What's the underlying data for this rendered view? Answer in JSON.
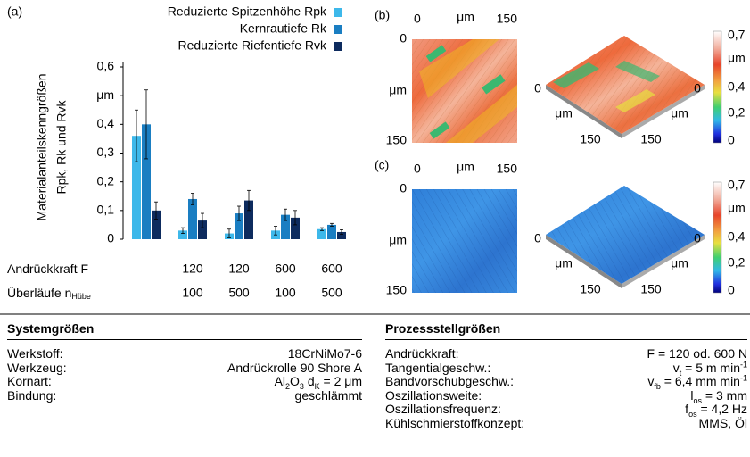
{
  "chart_data": {
    "type": "bar",
    "panel_label": "(a)",
    "y_label": [
      "Materialanteilskenngrößen",
      "Rpk, Rk und Rvk"
    ],
    "categories": [
      null,
      null,
      null,
      null,
      null
    ],
    "x_rows": [
      {
        "label": "Andrückkraft F",
        "values": [
          null,
          "120",
          "120",
          "600",
          "600"
        ]
      },
      {
        "label": "Überläufe n",
        "label_sub": "Hübe",
        "values": [
          null,
          "100",
          "500",
          "100",
          "500"
        ]
      }
    ],
    "series": [
      {
        "name": "Reduzierte Spitzenhöhe Rpk",
        "color": "#3db8ea",
        "values": [
          0.36,
          0.03,
          0.02,
          0.03,
          0.035
        ],
        "errors": [
          0.09,
          0.01,
          0.015,
          0.015,
          0.005
        ]
      },
      {
        "name": "Kernrautiefe Rk",
        "color": "#1a7ec2",
        "values": [
          0.4,
          0.14,
          0.09,
          0.085,
          0.05
        ],
        "errors": [
          0.12,
          0.02,
          0.025,
          0.02,
          0.005
        ]
      },
      {
        "name": "Reduzierte Riefentiefe Rvk",
        "color": "#0d2b5e",
        "values": [
          0.1,
          0.065,
          0.135,
          0.075,
          0.025
        ],
        "errors": [
          0.03,
          0.025,
          0.035,
          0.025,
          0.008
        ]
      }
    ],
    "ylim": [
      0,
      0.6
    ],
    "yticks": [
      0,
      {
        "value": 0.1,
        "label": "0,1"
      },
      {
        "value": 0.2,
        "label": "0,2"
      },
      {
        "value": 0.3,
        "label": "0,3"
      },
      {
        "value": 0.4,
        "label": "0,4"
      },
      {
        "value": 0.5,
        "label": "μm"
      },
      {
        "value": 0.6,
        "label": "0,6"
      }
    ],
    "grid": false
  },
  "maps": {
    "panels": [
      "(b)",
      "(c)"
    ],
    "axis_ticks": [
      "0",
      "μm",
      "150"
    ],
    "colorbar_ticks": [
      "0,7",
      "μm",
      "0,4",
      "0,2",
      "0"
    ]
  },
  "tables": [
    {
      "title": "Systemgrößen",
      "rows": [
        {
          "label": "Werkstoff:",
          "value": [
            {
              "text": "18CrNiMo7-6"
            }
          ]
        },
        {
          "label": "Werkzeug:",
          "value": [
            {
              "text": "Andrückrolle 90 Shore A"
            }
          ]
        },
        {
          "label": "Kornart:",
          "value": [
            {
              "text": "Al"
            },
            {
              "text": "2",
              "style": "sub"
            },
            {
              "text": "O"
            },
            {
              "text": "3",
              "style": "sub"
            },
            {
              "text": " d"
            },
            {
              "text": "K",
              "style": "sub"
            },
            {
              "text": " = 2 μm"
            }
          ]
        },
        {
          "label": "Bindung:",
          "value": [
            {
              "text": "geschlämmt"
            }
          ]
        }
      ]
    },
    {
      "title": "Prozessstellgrößen",
      "rows": [
        {
          "label": "Andrückkraft:",
          "value": [
            {
              "text": "F = 120 od. 600 N"
            }
          ]
        },
        {
          "label": "Tangentialgeschw.:",
          "value": [
            {
              "text": "v"
            },
            {
              "text": "t",
              "style": "sub"
            },
            {
              "text": " = 5 m min"
            },
            {
              "text": "-1",
              "style": "sup"
            }
          ]
        },
        {
          "label": "Bandvorschubgeschw.:",
          "value": [
            {
              "text": "v"
            },
            {
              "text": "fb",
              "style": "sub"
            },
            {
              "text": " = 6,4 mm min"
            },
            {
              "text": "-1",
              "style": "sup"
            }
          ]
        },
        {
          "label": "Oszillationsweite:",
          "value": [
            {
              "text": "l"
            },
            {
              "text": "os",
              "style": "sub"
            },
            {
              "text": " = 3 mm"
            }
          ]
        },
        {
          "label": "Oszillationsfrequenz:",
          "value": [
            {
              "text": "f"
            },
            {
              "text": "os",
              "style": "sub"
            },
            {
              "text": " = 4,2 Hz"
            }
          ]
        },
        {
          "label": "Kühlschmierstoffkonzept:",
          "value": [
            {
              "text": "MMS, Öl"
            }
          ]
        }
      ]
    }
  ]
}
